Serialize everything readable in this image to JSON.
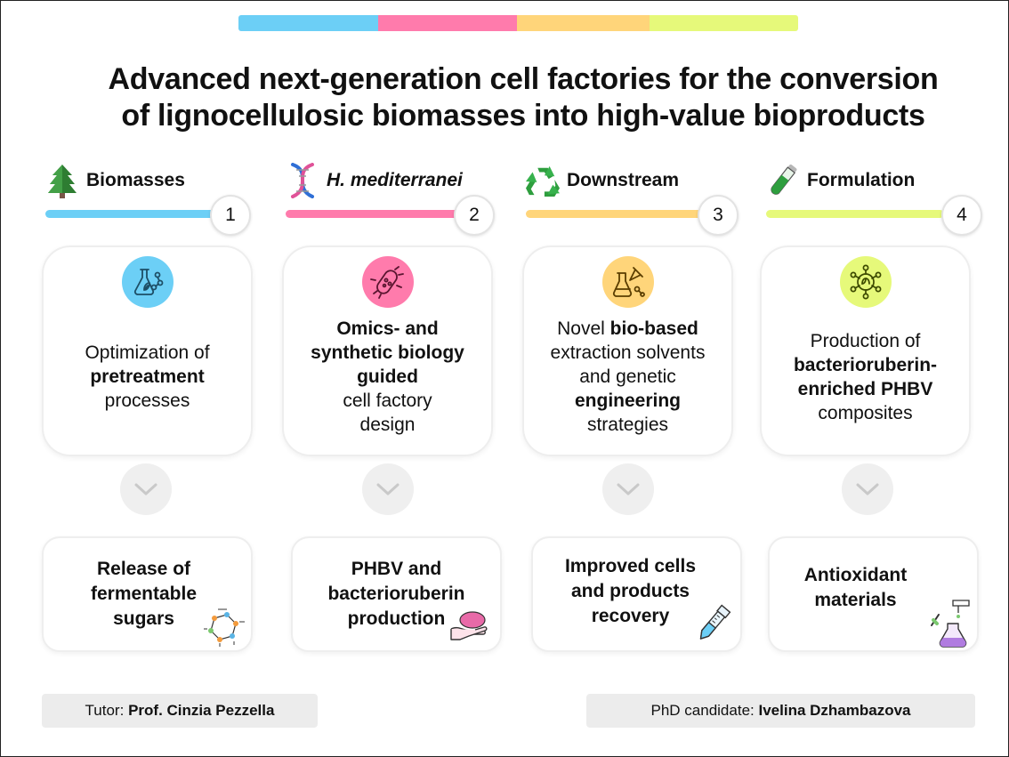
{
  "title": {
    "line1": "Advanced next-generation cell factories for the conversion",
    "line2": "of lignocellulosic biomasses into high-value bioproducts"
  },
  "colors": {
    "blue": "#6CCFF6",
    "pink": "#FF7BAC",
    "yellow": "#FFD57A",
    "lime": "#E6F97A",
    "chevron_bg": "#EFEFEF",
    "footer_bg": "#ECECEC"
  },
  "columns": [
    {
      "heading": "Biomasses",
      "heading_icon": "pine-tree-icon",
      "number": "1",
      "card_icon": "lab-flask-leaf-icon",
      "card_parts": [
        "Optimization of ",
        "pretreatment",
        " processes"
      ],
      "output": "Release of fermentable sugars",
      "output_icon": "glucose-molecule-icon"
    },
    {
      "heading": "H. mediterranei",
      "heading_icon": "dna-helix-icon",
      "number": "2",
      "card_icon": "bacterium-icon",
      "card_parts": [
        "Omics- and synthetic biology guided",
        " cell factory design"
      ],
      "output": "PHBV and bacterioruberin production",
      "output_icon": "hand-holding-icon"
    },
    {
      "heading": "Downstream",
      "heading_icon": "recycle-icon",
      "number": "3",
      "card_icon": "chemistry-icon",
      "card_parts": [
        "Novel ",
        "bio-based",
        " extraction solvents and genetic ",
        "engineering",
        " strategies"
      ],
      "output": "Improved cells and products recovery",
      "output_icon": "test-tube-icon"
    },
    {
      "heading": "Formulation",
      "heading_icon": "test-tube-green-icon",
      "number": "4",
      "card_icon": "molecular-network-icon",
      "card_parts": [
        "Production of ",
        "bacterioruberin-enriched PHBV",
        " composites"
      ],
      "output": "Antioxidant materials",
      "output_icon": "flask-dropper-icon"
    }
  ],
  "footer": {
    "tutor_label": "Tutor: ",
    "tutor_name": "Prof. Cinzia Pezzella",
    "candidate_label": "PhD candidate: ",
    "candidate_name": "Ivelina Dzhambazova"
  }
}
